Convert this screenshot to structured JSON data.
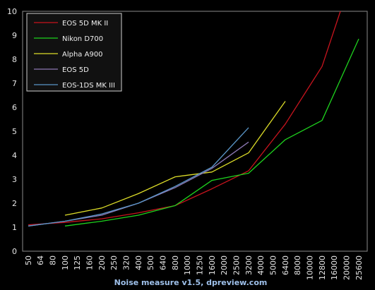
{
  "chart_data": {
    "type": "line",
    "categories": [
      "50",
      "64",
      "80",
      "100",
      "125",
      "160",
      "200",
      "250",
      "320",
      "400",
      "500",
      "640",
      "800",
      "1000",
      "1250",
      "1600",
      "2000",
      "2500",
      "3200",
      "4000",
      "5000",
      "6400",
      "8000",
      "10000",
      "12800",
      "16000",
      "20000",
      "25600"
    ],
    "ylim": [
      0,
      10
    ],
    "yticks": [
      "0",
      "1",
      "2",
      "3",
      "4",
      "5",
      "6",
      "7",
      "8",
      "9",
      "10"
    ],
    "footer": "Noise measure v1.5, dpreview.com",
    "grid": false,
    "legend_position": "top-left",
    "series": [
      {
        "name": "EOS 5D MK II",
        "color": "#c8141e",
        "points": [
          [
            0,
            1.1
          ],
          [
            3,
            1.2
          ],
          [
            6,
            1.35
          ],
          [
            9,
            1.6
          ],
          [
            12,
            1.9
          ],
          [
            15,
            2.6
          ],
          [
            18,
            3.35
          ],
          [
            21,
            5.3
          ],
          [
            24,
            7.7
          ],
          [
            25.5,
            10.0
          ]
        ]
      },
      {
        "name": "Nikon D700",
        "color": "#1ed21e",
        "points": [
          [
            3,
            1.05
          ],
          [
            6,
            1.25
          ],
          [
            9,
            1.5
          ],
          [
            12,
            1.9
          ],
          [
            15,
            2.95
          ],
          [
            18,
            3.25
          ],
          [
            21,
            4.65
          ],
          [
            24,
            5.45
          ],
          [
            27,
            8.85
          ]
        ]
      },
      {
        "name": "Alpha A900",
        "color": "#dcdc28",
        "points": [
          [
            3,
            1.5
          ],
          [
            6,
            1.8
          ],
          [
            9,
            2.4
          ],
          [
            12,
            3.1
          ],
          [
            15,
            3.3
          ],
          [
            18,
            4.1
          ],
          [
            21,
            6.25
          ]
        ]
      },
      {
        "name": "EOS 5D",
        "color": "#8c78b4",
        "points": [
          [
            0,
            1.05
          ],
          [
            3,
            1.25
          ],
          [
            6,
            1.5
          ],
          [
            9,
            2.0
          ],
          [
            12,
            2.65
          ],
          [
            15,
            3.45
          ],
          [
            18,
            4.55
          ]
        ]
      },
      {
        "name": "EOS-1DS MK III",
        "color": "#5a96c8",
        "points": [
          [
            0,
            1.05
          ],
          [
            3,
            1.25
          ],
          [
            6,
            1.55
          ],
          [
            9,
            2.0
          ],
          [
            12,
            2.7
          ],
          [
            15,
            3.5
          ],
          [
            18,
            5.15
          ]
        ]
      }
    ]
  }
}
